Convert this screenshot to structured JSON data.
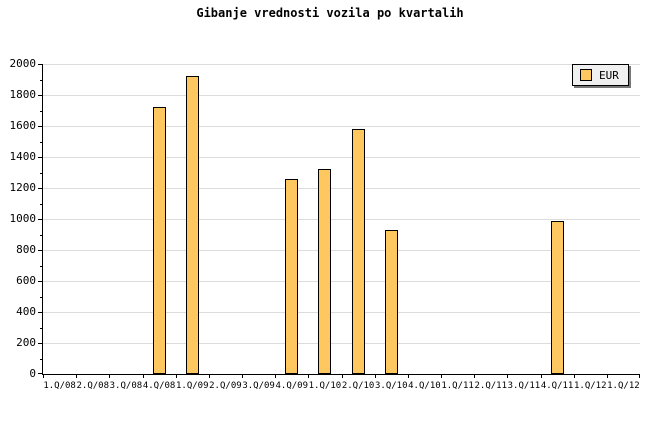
{
  "title": "Gibanje vrednosti vozila po kvartalih",
  "legend": {
    "label": "EUR"
  },
  "colors": {
    "background": "#FFFFFF",
    "bar_fill": "#FFC760",
    "bar_border": "#000000",
    "gridline": "#DCDCDC",
    "axis": "#000000",
    "text": "#000000",
    "legend_bg": "#F0F0F0",
    "legend_shadow": "#777777"
  },
  "chart_data": {
    "type": "bar",
    "title": "Gibanje vrednosti vozila po kvartalih",
    "categories": [
      "1.Q/08",
      "2.Q/08",
      "3.Q/08",
      "4.Q/08",
      "1.Q/09",
      "2.Q/09",
      "3.Q/09",
      "4.Q/09",
      "1.Q/10",
      "2.Q/10",
      "3.Q/10",
      "4.Q/10",
      "1.Q/11",
      "2.Q/11",
      "3.Q/11",
      "4.Q/11",
      "1.Q/12",
      "1.Q/12"
    ],
    "series": [
      {
        "name": "EUR",
        "values": [
          null,
          null,
          null,
          1720,
          1920,
          null,
          null,
          1260,
          1320,
          1580,
          930,
          null,
          null,
          null,
          null,
          990,
          null,
          null
        ]
      }
    ],
    "xlabel": "",
    "ylabel": "",
    "ylim": [
      0,
      2000
    ],
    "ytick_step": 200,
    "y_minor_step": 100,
    "ytick_labels": [
      "0",
      "200",
      "400",
      "600",
      "800",
      "1000",
      "1200",
      "1400",
      "1600",
      "1800",
      "2000"
    ],
    "grid": "horizontal-major",
    "legend_position": "top-right"
  }
}
